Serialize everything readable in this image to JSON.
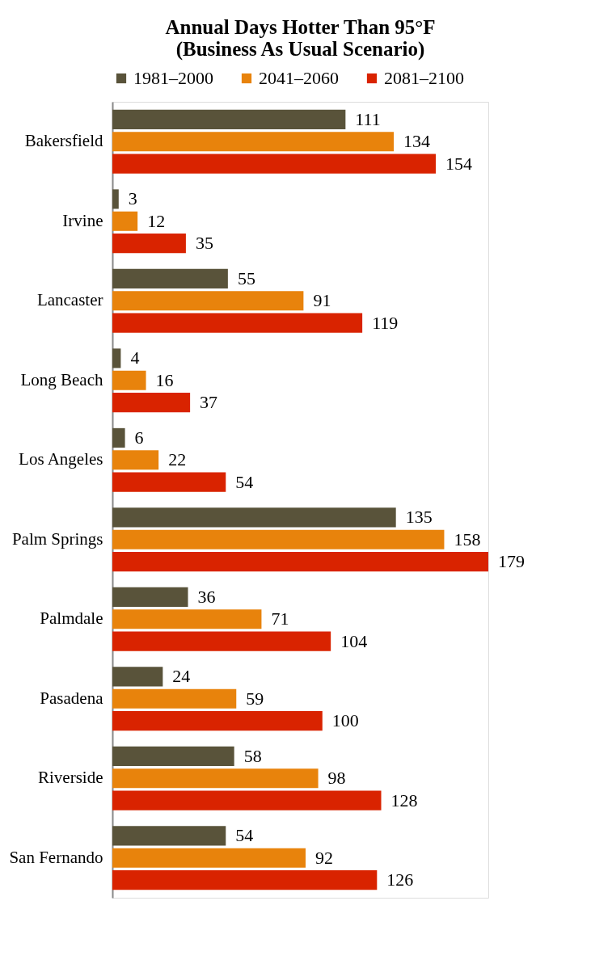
{
  "chart_data": {
    "type": "bar",
    "orientation": "horizontal",
    "title": [
      "Annual Days Hotter Than 95°F",
      "(Business As Usual Scenario)"
    ],
    "categories": [
      "Bakersfield",
      "Irvine",
      "Lancaster",
      "Long Beach",
      "Los Angeles",
      "Palm Springs",
      "Palmdale",
      "Pasadena",
      "Riverside",
      "San Fernando"
    ],
    "series": [
      {
        "name": "1981–2000",
        "color": "#59533a",
        "values": [
          111,
          3,
          55,
          4,
          6,
          135,
          36,
          24,
          58,
          54
        ]
      },
      {
        "name": "2041–2060",
        "color": "#e8830c",
        "values": [
          134,
          12,
          91,
          16,
          22,
          158,
          71,
          59,
          98,
          92
        ]
      },
      {
        "name": "2081–2100",
        "color": "#d92300",
        "values": [
          154,
          35,
          119,
          37,
          54,
          179,
          104,
          100,
          128,
          126
        ]
      }
    ],
    "data_labels": true,
    "legend": "top",
    "grid": false
  }
}
